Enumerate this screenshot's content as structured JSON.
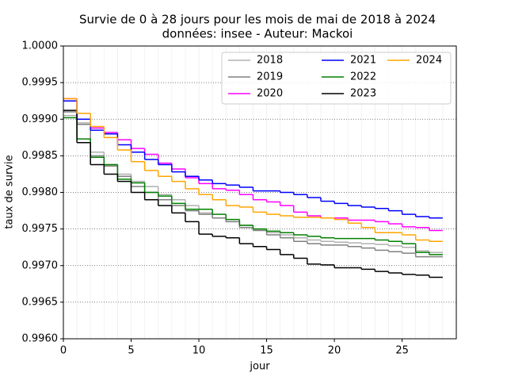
{
  "chart_data": {
    "type": "step",
    "title": "Survie de 0 à 28 jours pour les mois de mai de 2018 à 2024",
    "subtitle": "données: insee - Auteur: Mackoi",
    "x_label": "jour",
    "y_label": "taux de survie",
    "x": [
      0,
      1,
      2,
      3,
      4,
      5,
      6,
      7,
      8,
      9,
      10,
      11,
      12,
      13,
      14,
      15,
      16,
      17,
      18,
      19,
      20,
      21,
      22,
      23,
      24,
      25,
      26,
      27,
      28
    ],
    "xlim": [
      0,
      29
    ],
    "xticks": [
      0,
      5,
      10,
      15,
      20,
      25
    ],
    "ylim": [
      0.996,
      1.0
    ],
    "yticks": [
      {
        "value": 0.996,
        "label": "0.9960"
      },
      {
        "value": 0.9965,
        "label": "0.9965"
      },
      {
        "value": 0.997,
        "label": "0.9970"
      },
      {
        "value": 0.9975,
        "label": "0.9975"
      },
      {
        "value": 0.998,
        "label": "0.9980"
      },
      {
        "value": 0.9985,
        "label": "0.9985"
      },
      {
        "value": 0.999,
        "label": "0.9990"
      },
      {
        "value": 0.9995,
        "label": "0.9995"
      },
      {
        "value": 1.0,
        "label": "1.0000"
      }
    ],
    "grid": true,
    "legend_loc": "upper right",
    "series": [
      {
        "name": "2018",
        "color": "#b0b0b0",
        "values": [
          0.99905,
          0.99895,
          0.99855,
          0.99838,
          0.99825,
          0.99815,
          0.99808,
          0.99797,
          0.9979,
          0.99782,
          0.99772,
          0.99765,
          0.9976,
          0.99755,
          0.9975,
          0.99745,
          0.99742,
          0.99738,
          0.99735,
          0.99733,
          0.99732,
          0.99731,
          0.9973,
          0.99729,
          0.99727,
          0.99725,
          0.9972,
          0.99718,
          0.99718
        ]
      },
      {
        "name": "2019",
        "color": "#808080",
        "values": [
          0.9991,
          0.99893,
          0.9985,
          0.99836,
          0.99822,
          0.99808,
          0.998,
          0.9979,
          0.99782,
          0.99775,
          0.9977,
          0.99765,
          0.9976,
          0.99752,
          0.99748,
          0.99742,
          0.99738,
          0.99733,
          0.9973,
          0.99728,
          0.99728,
          0.99726,
          0.99724,
          0.99721,
          0.99719,
          0.99717,
          0.99712,
          0.99712,
          0.99712
        ]
      },
      {
        "name": "2020",
        "color": "#ff00ff",
        "values": [
          0.99928,
          0.999,
          0.99888,
          0.99882,
          0.99872,
          0.9986,
          0.99852,
          0.9984,
          0.99832,
          0.9982,
          0.99812,
          0.99805,
          0.99803,
          0.99797,
          0.9979,
          0.99787,
          0.99782,
          0.99773,
          0.99768,
          0.99765,
          0.99765,
          0.99762,
          0.99762,
          0.9976,
          0.99757,
          0.99753,
          0.99752,
          0.99748,
          0.99748
        ]
      },
      {
        "name": "2021",
        "color": "#0000ff",
        "values": [
          0.99925,
          0.999,
          0.99885,
          0.9988,
          0.99865,
          0.99855,
          0.99845,
          0.99838,
          0.99828,
          0.99822,
          0.99817,
          0.99812,
          0.9981,
          0.99807,
          0.99802,
          0.99802,
          0.998,
          0.99797,
          0.99793,
          0.99788,
          0.99785,
          0.99782,
          0.9978,
          0.99778,
          0.99775,
          0.9977,
          0.99767,
          0.99765,
          0.99765
        ]
      },
      {
        "name": "2022",
        "color": "#008000",
        "values": [
          0.99902,
          0.99873,
          0.99848,
          0.99838,
          0.99818,
          0.99813,
          0.998,
          0.99795,
          0.99785,
          0.99777,
          0.99777,
          0.9977,
          0.99763,
          0.99755,
          0.9975,
          0.99747,
          0.99745,
          0.99742,
          0.9974,
          0.99738,
          0.99737,
          0.99737,
          0.99737,
          0.99735,
          0.99733,
          0.9973,
          0.99718,
          0.99715,
          0.99715
        ]
      },
      {
        "name": "2023",
        "color": "#000000",
        "values": [
          0.99912,
          0.99868,
          0.99838,
          0.99825,
          0.99815,
          0.998,
          0.9979,
          0.99782,
          0.99772,
          0.9976,
          0.99743,
          0.9974,
          0.99738,
          0.9973,
          0.99726,
          0.99722,
          0.99715,
          0.9971,
          0.99702,
          0.99701,
          0.99697,
          0.99697,
          0.99695,
          0.99692,
          0.9969,
          0.99688,
          0.99687,
          0.99684,
          0.99684
        ]
      },
      {
        "name": "2024",
        "color": "#ffa500",
        "values": [
          0.99928,
          0.99908,
          0.9989,
          0.99875,
          0.99858,
          0.99842,
          0.9983,
          0.99822,
          0.99815,
          0.99805,
          0.99797,
          0.9979,
          0.99782,
          0.9978,
          0.99773,
          0.9977,
          0.99768,
          0.99766,
          0.99766,
          0.99765,
          0.99763,
          0.99758,
          0.99752,
          0.99745,
          0.99745,
          0.99742,
          0.99735,
          0.99733,
          0.99733
        ]
      }
    ]
  }
}
